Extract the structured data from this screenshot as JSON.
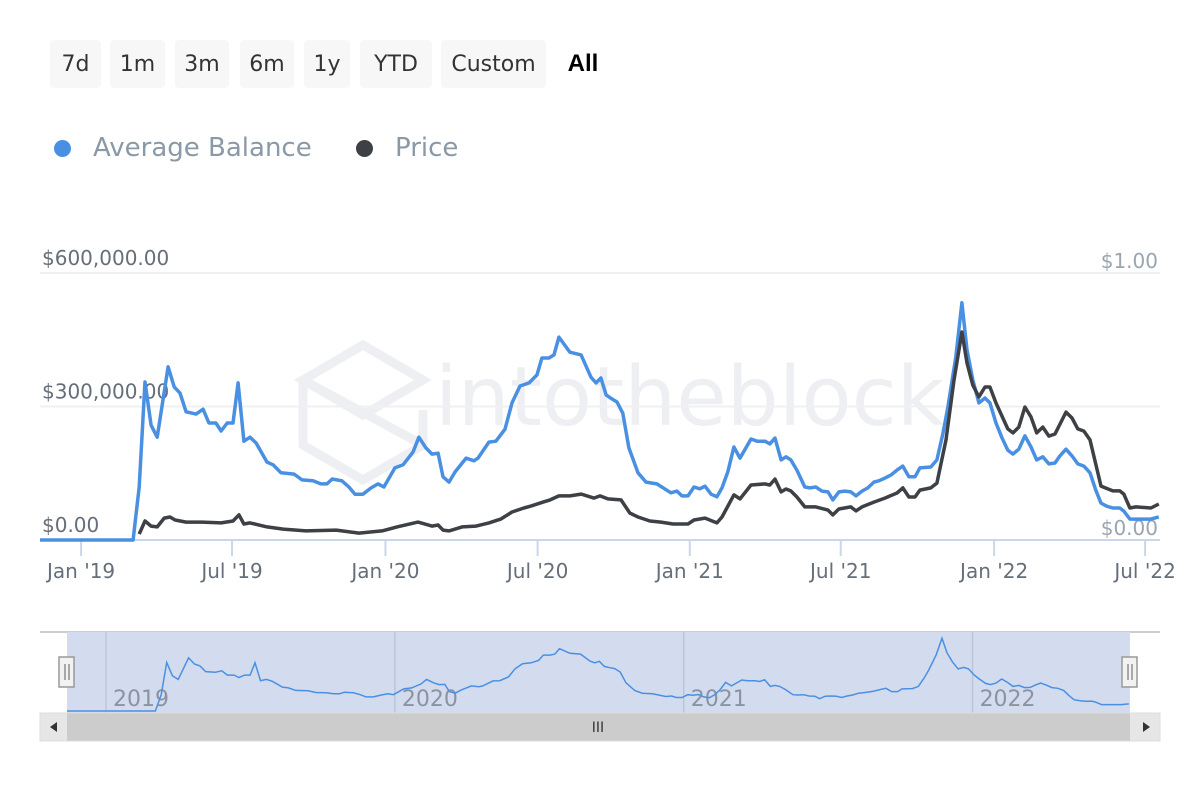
{
  "range_buttons": [
    {
      "label": "7d",
      "active": false
    },
    {
      "label": "1m",
      "active": false
    },
    {
      "label": "3m",
      "active": false
    },
    {
      "label": "6m",
      "active": false
    },
    {
      "label": "1y",
      "active": false
    },
    {
      "label": "YTD",
      "active": false
    },
    {
      "label": "Custom",
      "active": false
    },
    {
      "label": "All",
      "active": true
    }
  ],
  "watermark": "intotheblock",
  "navigator": {
    "year_labels": [
      "2019",
      "2020",
      "2021",
      "2022"
    ],
    "scroll_grip": "III"
  },
  "colors": {
    "balance": "#4a90e2",
    "price": "#3d4045",
    "grid": "#f0f0f0",
    "axis": "#ccd6eb",
    "nav_mask": "#d3dcee"
  },
  "chart_data": {
    "type": "line",
    "title": "",
    "legend": [
      "Average Balance",
      "Price"
    ],
    "legend_placement": "top-left",
    "x_unit": "decimal year",
    "xlim": [
      2018.865,
      2022.545
    ],
    "x_ticks": [
      {
        "value": 2019.0,
        "label": "Jan '19"
      },
      {
        "value": 2019.496,
        "label": "Jul '19"
      },
      {
        "value": 2020.0,
        "label": "Jan '20"
      },
      {
        "value": 2020.5,
        "label": "Jul '20"
      },
      {
        "value": 2021.0,
        "label": "Jan '21"
      },
      {
        "value": 2021.496,
        "label": "Jul '21"
      },
      {
        "value": 2022.0,
        "label": "Jan '22"
      },
      {
        "value": 2022.496,
        "label": "Jul '22"
      }
    ],
    "y_left": {
      "label": "Average Balance",
      "ylim": [
        0,
        600000
      ],
      "ticks": [
        {
          "value": 0,
          "label": "$0.00"
        },
        {
          "value": 300000,
          "label": "$300,000.00"
        },
        {
          "value": 600000,
          "label": "$600,000.00"
        }
      ]
    },
    "y_right": {
      "label": "Price",
      "ylim": [
        0,
        1
      ],
      "ticks": [
        {
          "value": 0,
          "label": "$0.00"
        },
        {
          "value": 1,
          "label": "$1.00"
        }
      ]
    },
    "grid": true,
    "series": [
      {
        "name": "Average Balance",
        "axis": "left",
        "points": [
          [
            2018.865,
            0
          ],
          [
            2019.171,
            0
          ],
          [
            2019.191,
            119000
          ],
          [
            2019.21,
            355000
          ],
          [
            2019.23,
            258000
          ],
          [
            2019.25,
            231000
          ],
          [
            2019.286,
            389000
          ],
          [
            2019.306,
            344000
          ],
          [
            2019.325,
            330000
          ],
          [
            2019.345,
            288000
          ],
          [
            2019.378,
            283000
          ],
          [
            2019.401,
            294000
          ],
          [
            2019.42,
            263000
          ],
          [
            2019.443,
            263000
          ],
          [
            2019.46,
            245000
          ],
          [
            2019.48,
            263000
          ],
          [
            2019.499,
            263000
          ],
          [
            2019.516,
            353000
          ],
          [
            2019.535,
            222000
          ],
          [
            2019.555,
            231000
          ],
          [
            2019.575,
            218000
          ],
          [
            2019.611,
            175000
          ],
          [
            2019.631,
            169000
          ],
          [
            2019.657,
            151000
          ],
          [
            2019.7,
            148000
          ],
          [
            2019.726,
            135000
          ],
          [
            2019.762,
            133000
          ],
          [
            2019.788,
            126000
          ],
          [
            2019.808,
            126000
          ],
          [
            2019.825,
            137000
          ],
          [
            2019.857,
            133000
          ],
          [
            2019.88,
            119000
          ],
          [
            2019.9,
            103000
          ],
          [
            2019.926,
            103000
          ],
          [
            2019.953,
            117000
          ],
          [
            2019.976,
            126000
          ],
          [
            2019.995,
            119000
          ],
          [
            2020.031,
            162000
          ],
          [
            2020.058,
            169000
          ],
          [
            2020.091,
            198000
          ],
          [
            2020.11,
            231000
          ],
          [
            2020.133,
            207000
          ],
          [
            2020.153,
            193000
          ],
          [
            2020.173,
            195000
          ],
          [
            2020.189,
            142000
          ],
          [
            2020.209,
            130000
          ],
          [
            2020.229,
            153000
          ],
          [
            2020.265,
            184000
          ],
          [
            2020.291,
            178000
          ],
          [
            2020.304,
            184000
          ],
          [
            2020.34,
            220000
          ],
          [
            2020.363,
            222000
          ],
          [
            2020.393,
            249000
          ],
          [
            2020.416,
            308000
          ],
          [
            2020.442,
            346000
          ],
          [
            2020.472,
            353000
          ],
          [
            2020.498,
            371000
          ],
          [
            2020.514,
            409000
          ],
          [
            2020.537,
            409000
          ],
          [
            2020.554,
            416000
          ],
          [
            2020.57,
            456000
          ],
          [
            2020.606,
            422000
          ],
          [
            2020.643,
            416000
          ],
          [
            2020.675,
            366000
          ],
          [
            2020.692,
            353000
          ],
          [
            2020.708,
            364000
          ],
          [
            2020.725,
            326000
          ],
          [
            2020.744,
            317000
          ],
          [
            2020.761,
            310000
          ],
          [
            2020.78,
            285000
          ],
          [
            2020.8,
            207000
          ],
          [
            2020.83,
            151000
          ],
          [
            2020.856,
            130000
          ],
          [
            2020.892,
            126000
          ],
          [
            2020.938,
            106000
          ],
          [
            2020.958,
            110000
          ],
          [
            2020.974,
            99000
          ],
          [
            2020.994,
            99000
          ],
          [
            2021.014,
            119000
          ],
          [
            2021.033,
            115000
          ],
          [
            2021.05,
            121000
          ],
          [
            2021.07,
            103000
          ],
          [
            2021.089,
            97000
          ],
          [
            2021.106,
            117000
          ],
          [
            2021.125,
            153000
          ],
          [
            2021.145,
            209000
          ],
          [
            2021.165,
            184000
          ],
          [
            2021.201,
            227000
          ],
          [
            2021.221,
            222000
          ],
          [
            2021.247,
            222000
          ],
          [
            2021.263,
            216000
          ],
          [
            2021.28,
            229000
          ],
          [
            2021.3,
            180000
          ],
          [
            2021.316,
            187000
          ],
          [
            2021.332,
            180000
          ],
          [
            2021.352,
            157000
          ],
          [
            2021.378,
            119000
          ],
          [
            2021.395,
            117000
          ],
          [
            2021.414,
            119000
          ],
          [
            2021.434,
            110000
          ],
          [
            2021.454,
            108000
          ],
          [
            2021.47,
            90000
          ],
          [
            2021.49,
            108000
          ],
          [
            2021.51,
            110000
          ],
          [
            2021.529,
            108000
          ],
          [
            2021.546,
            99000
          ],
          [
            2021.566,
            110000
          ],
          [
            2021.585,
            117000
          ],
          [
            2021.605,
            130000
          ],
          [
            2021.621,
            133000
          ],
          [
            2021.641,
            139000
          ],
          [
            2021.661,
            146000
          ],
          [
            2021.681,
            157000
          ],
          [
            2021.7,
            166000
          ],
          [
            2021.72,
            142000
          ],
          [
            2021.74,
            142000
          ],
          [
            2021.756,
            162000
          ],
          [
            2021.792,
            164000
          ],
          [
            2021.812,
            180000
          ],
          [
            2021.832,
            240000
          ],
          [
            2021.848,
            299000
          ],
          [
            2021.874,
            411000
          ],
          [
            2021.894,
            533000
          ],
          [
            2021.911,
            427000
          ],
          [
            2021.93,
            360000
          ],
          [
            2021.95,
            308000
          ],
          [
            2021.97,
            319000
          ],
          [
            2021.986,
            308000
          ],
          [
            2022.006,
            263000
          ],
          [
            2022.025,
            231000
          ],
          [
            2022.045,
            202000
          ],
          [
            2022.062,
            193000
          ],
          [
            2022.081,
            204000
          ],
          [
            2022.101,
            234000
          ],
          [
            2022.121,
            209000
          ],
          [
            2022.14,
            180000
          ],
          [
            2022.16,
            187000
          ],
          [
            2022.18,
            171000
          ],
          [
            2022.2,
            173000
          ],
          [
            2022.216,
            189000
          ],
          [
            2022.236,
            204000
          ],
          [
            2022.256,
            189000
          ],
          [
            2022.275,
            171000
          ],
          [
            2022.295,
            166000
          ],
          [
            2022.315,
            151000
          ],
          [
            2022.334,
            112000
          ],
          [
            2022.351,
            83000
          ],
          [
            2022.37,
            76000
          ],
          [
            2022.39,
            72000
          ],
          [
            2022.413,
            72000
          ],
          [
            2022.426,
            65000
          ],
          [
            2022.446,
            47000
          ],
          [
            2022.466,
            47000
          ],
          [
            2022.515,
            47000
          ],
          [
            2022.541,
            52000
          ]
        ]
      },
      {
        "name": "Price",
        "axis": "right",
        "points": [
          [
            2019.191,
            0.022
          ],
          [
            2019.21,
            0.071
          ],
          [
            2019.23,
            0.052
          ],
          [
            2019.25,
            0.049
          ],
          [
            2019.273,
            0.082
          ],
          [
            2019.292,
            0.086
          ],
          [
            2019.309,
            0.075
          ],
          [
            2019.345,
            0.067
          ],
          [
            2019.397,
            0.067
          ],
          [
            2019.46,
            0.064
          ],
          [
            2019.499,
            0.071
          ],
          [
            2019.519,
            0.094
          ],
          [
            2019.535,
            0.06
          ],
          [
            2019.555,
            0.064
          ],
          [
            2019.611,
            0.049
          ],
          [
            2019.664,
            0.041
          ],
          [
            2019.739,
            0.034
          ],
          [
            2019.838,
            0.037
          ],
          [
            2019.913,
            0.026
          ],
          [
            2019.989,
            0.034
          ],
          [
            2020.038,
            0.049
          ],
          [
            2020.107,
            0.067
          ],
          [
            2020.153,
            0.052
          ],
          [
            2020.173,
            0.056
          ],
          [
            2020.189,
            0.037
          ],
          [
            2020.209,
            0.034
          ],
          [
            2020.252,
            0.049
          ],
          [
            2020.298,
            0.052
          ],
          [
            2020.34,
            0.064
          ],
          [
            2020.38,
            0.079
          ],
          [
            2020.416,
            0.105
          ],
          [
            2020.455,
            0.12
          ],
          [
            2020.478,
            0.127
          ],
          [
            2020.518,
            0.142
          ],
          [
            2020.541,
            0.15
          ],
          [
            2020.57,
            0.165
          ],
          [
            2020.606,
            0.165
          ],
          [
            2020.643,
            0.172
          ],
          [
            2020.685,
            0.157
          ],
          [
            2020.705,
            0.165
          ],
          [
            2020.731,
            0.154
          ],
          [
            2020.774,
            0.15
          ],
          [
            2020.803,
            0.101
          ],
          [
            2020.83,
            0.086
          ],
          [
            2020.869,
            0.071
          ],
          [
            2020.905,
            0.067
          ],
          [
            2020.945,
            0.06
          ],
          [
            2020.994,
            0.06
          ],
          [
            2021.014,
            0.075
          ],
          [
            2021.05,
            0.082
          ],
          [
            2021.089,
            0.064
          ],
          [
            2021.106,
            0.086
          ],
          [
            2021.145,
            0.169
          ],
          [
            2021.165,
            0.154
          ],
          [
            2021.201,
            0.206
          ],
          [
            2021.247,
            0.21
          ],
          [
            2021.263,
            0.206
          ],
          [
            2021.28,
            0.228
          ],
          [
            2021.3,
            0.18
          ],
          [
            2021.316,
            0.191
          ],
          [
            2021.332,
            0.184
          ],
          [
            2021.352,
            0.161
          ],
          [
            2021.378,
            0.124
          ],
          [
            2021.414,
            0.124
          ],
          [
            2021.454,
            0.112
          ],
          [
            2021.47,
            0.094
          ],
          [
            2021.49,
            0.116
          ],
          [
            2021.529,
            0.124
          ],
          [
            2021.546,
            0.109
          ],
          [
            2021.566,
            0.124
          ],
          [
            2021.605,
            0.142
          ],
          [
            2021.641,
            0.157
          ],
          [
            2021.681,
            0.176
          ],
          [
            2021.7,
            0.195
          ],
          [
            2021.72,
            0.161
          ],
          [
            2021.74,
            0.161
          ],
          [
            2021.756,
            0.187
          ],
          [
            2021.792,
            0.195
          ],
          [
            2021.812,
            0.213
          ],
          [
            2021.842,
            0.375
          ],
          [
            2021.868,
            0.599
          ],
          [
            2021.894,
            0.779
          ],
          [
            2021.911,
            0.663
          ],
          [
            2021.93,
            0.58
          ],
          [
            2021.95,
            0.536
          ],
          [
            2021.97,
            0.573
          ],
          [
            2021.986,
            0.573
          ],
          [
            2022.006,
            0.513
          ],
          [
            2022.045,
            0.416
          ],
          [
            2022.062,
            0.401
          ],
          [
            2022.081,
            0.423
          ],
          [
            2022.101,
            0.498
          ],
          [
            2022.121,
            0.461
          ],
          [
            2022.14,
            0.401
          ],
          [
            2022.16,
            0.423
          ],
          [
            2022.18,
            0.389
          ],
          [
            2022.2,
            0.397
          ],
          [
            2022.236,
            0.479
          ],
          [
            2022.256,
            0.457
          ],
          [
            2022.275,
            0.416
          ],
          [
            2022.295,
            0.408
          ],
          [
            2022.315,
            0.375
          ],
          [
            2022.351,
            0.202
          ],
          [
            2022.39,
            0.184
          ],
          [
            2022.413,
            0.184
          ],
          [
            2022.426,
            0.172
          ],
          [
            2022.446,
            0.12
          ],
          [
            2022.466,
            0.124
          ],
          [
            2022.515,
            0.12
          ],
          [
            2022.541,
            0.135
          ]
        ]
      }
    ]
  }
}
